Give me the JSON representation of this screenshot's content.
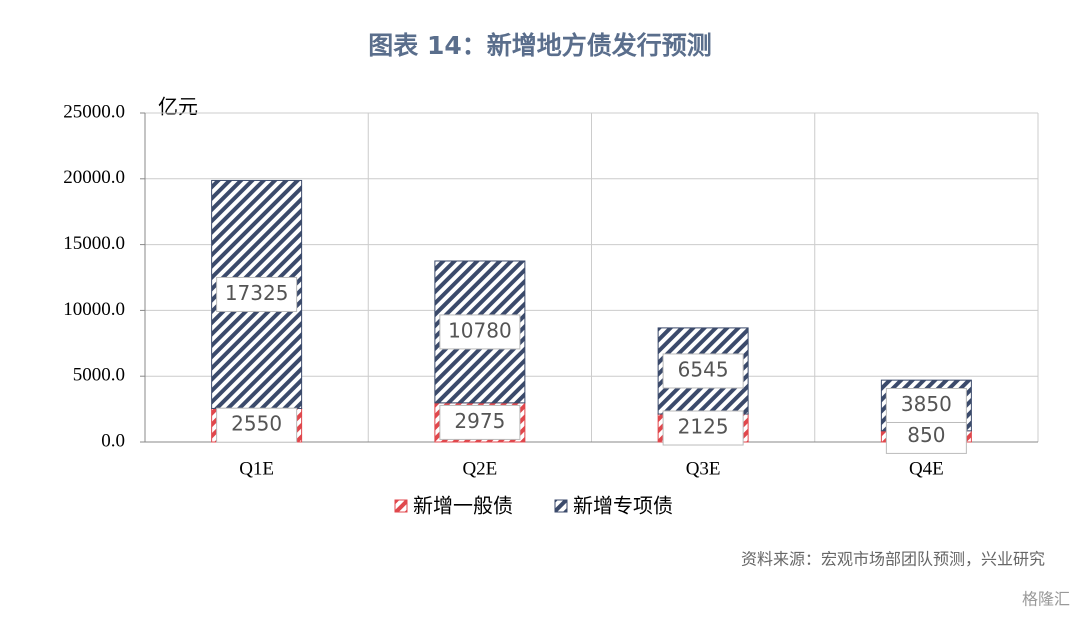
{
  "chart_data": {
    "type": "stacked-bar",
    "title": "图表 14：新增地方债发行预测",
    "y_unit": "亿元",
    "categories": [
      "Q1E",
      "Q2E",
      "Q3E",
      "Q4E"
    ],
    "series": [
      {
        "name": "新增一般债",
        "color": "#e0474c",
        "values": [
          2550,
          2975,
          2125,
          850
        ]
      },
      {
        "name": "新增专项债",
        "color": "#3b4a6b",
        "values": [
          17325,
          10780,
          6545,
          3850
        ]
      }
    ],
    "ylim": [
      0,
      25000
    ],
    "yticks": [
      {
        "value": 0,
        "label": "0.0"
      },
      {
        "value": 5000,
        "label": "5000.0"
      },
      {
        "value": 10000,
        "label": "10000.0"
      },
      {
        "value": 15000,
        "label": "15000.0"
      },
      {
        "value": 20000,
        "label": "20000.0"
      },
      {
        "value": 25000,
        "label": "25000.0"
      }
    ],
    "grid": true,
    "legend": "bottom",
    "source": "资料来源：宏观市场部团队预测，兴业研究",
    "watermark": "格隆汇"
  }
}
